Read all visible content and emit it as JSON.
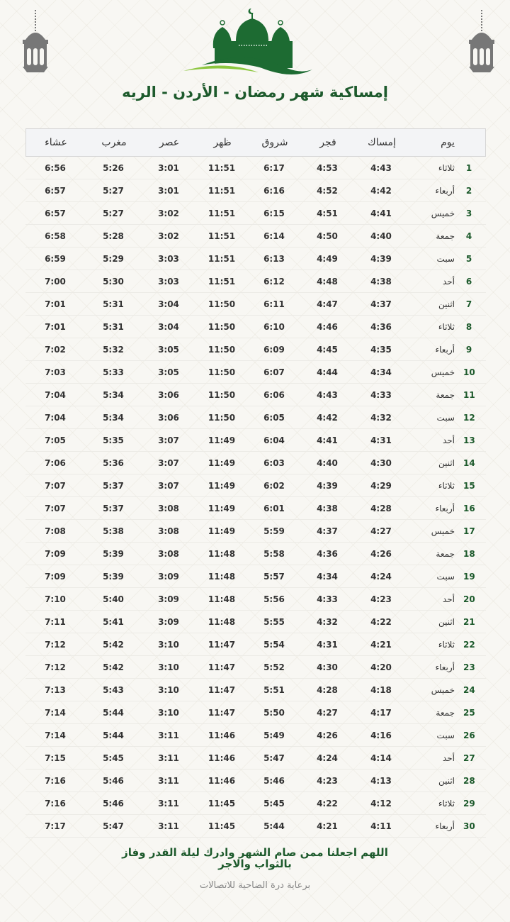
{
  "header": {
    "title": "إمساكية شهر رمضان - الأردن - الريه",
    "colors": {
      "green": "#1d6b32",
      "light_green": "#8cc63f",
      "lantern": "#777777"
    }
  },
  "table": {
    "columns": [
      "عشاء",
      "مغرب",
      "عصر",
      "ظهر",
      "شروق",
      "فجر",
      "إمساك",
      "يوم"
    ],
    "rows": [
      [
        "1",
        "ثلاثاء",
        "4:43",
        "4:53",
        "6:17",
        "11:51",
        "3:01",
        "5:26",
        "6:56"
      ],
      [
        "2",
        "أربعاء",
        "4:42",
        "4:52",
        "6:16",
        "11:51",
        "3:01",
        "5:27",
        "6:57"
      ],
      [
        "3",
        "خميس",
        "4:41",
        "4:51",
        "6:15",
        "11:51",
        "3:02",
        "5:27",
        "6:57"
      ],
      [
        "4",
        "جمعة",
        "4:40",
        "4:50",
        "6:14",
        "11:51",
        "3:02",
        "5:28",
        "6:58"
      ],
      [
        "5",
        "سبت",
        "4:39",
        "4:49",
        "6:13",
        "11:51",
        "3:03",
        "5:29",
        "6:59"
      ],
      [
        "6",
        "أحد",
        "4:38",
        "4:48",
        "6:12",
        "11:51",
        "3:03",
        "5:30",
        "7:00"
      ],
      [
        "7",
        "اثنين",
        "4:37",
        "4:47",
        "6:11",
        "11:50",
        "3:04",
        "5:31",
        "7:01"
      ],
      [
        "8",
        "ثلاثاء",
        "4:36",
        "4:46",
        "6:10",
        "11:50",
        "3:04",
        "5:31",
        "7:01"
      ],
      [
        "9",
        "أربعاء",
        "4:35",
        "4:45",
        "6:09",
        "11:50",
        "3:05",
        "5:32",
        "7:02"
      ],
      [
        "10",
        "خميس",
        "4:34",
        "4:44",
        "6:07",
        "11:50",
        "3:05",
        "5:33",
        "7:03"
      ],
      [
        "11",
        "جمعة",
        "4:33",
        "4:43",
        "6:06",
        "11:50",
        "3:06",
        "5:34",
        "7:04"
      ],
      [
        "12",
        "سبت",
        "4:32",
        "4:42",
        "6:05",
        "11:50",
        "3:06",
        "5:34",
        "7:04"
      ],
      [
        "13",
        "أحد",
        "4:31",
        "4:41",
        "6:04",
        "11:49",
        "3:07",
        "5:35",
        "7:05"
      ],
      [
        "14",
        "اثنين",
        "4:30",
        "4:40",
        "6:03",
        "11:49",
        "3:07",
        "5:36",
        "7:06"
      ],
      [
        "15",
        "ثلاثاء",
        "4:29",
        "4:39",
        "6:02",
        "11:49",
        "3:07",
        "5:37",
        "7:07"
      ],
      [
        "16",
        "أربعاء",
        "4:28",
        "4:38",
        "6:01",
        "11:49",
        "3:08",
        "5:37",
        "7:07"
      ],
      [
        "17",
        "خميس",
        "4:27",
        "4:37",
        "5:59",
        "11:49",
        "3:08",
        "5:38",
        "7:08"
      ],
      [
        "18",
        "جمعة",
        "4:26",
        "4:36",
        "5:58",
        "11:48",
        "3:08",
        "5:39",
        "7:09"
      ],
      [
        "19",
        "سبت",
        "4:24",
        "4:34",
        "5:57",
        "11:48",
        "3:09",
        "5:39",
        "7:09"
      ],
      [
        "20",
        "أحد",
        "4:23",
        "4:33",
        "5:56",
        "11:48",
        "3:09",
        "5:40",
        "7:10"
      ],
      [
        "21",
        "اثنين",
        "4:22",
        "4:32",
        "5:55",
        "11:48",
        "3:09",
        "5:41",
        "7:11"
      ],
      [
        "22",
        "ثلاثاء",
        "4:21",
        "4:31",
        "5:54",
        "11:47",
        "3:10",
        "5:42",
        "7:12"
      ],
      [
        "23",
        "أربعاء",
        "4:20",
        "4:30",
        "5:52",
        "11:47",
        "3:10",
        "5:42",
        "7:12"
      ],
      [
        "24",
        "خميس",
        "4:18",
        "4:28",
        "5:51",
        "11:47",
        "3:10",
        "5:43",
        "7:13"
      ],
      [
        "25",
        "جمعة",
        "4:17",
        "4:27",
        "5:50",
        "11:47",
        "3:10",
        "5:44",
        "7:14"
      ],
      [
        "26",
        "سبت",
        "4:16",
        "4:26",
        "5:49",
        "11:46",
        "3:11",
        "5:44",
        "7:14"
      ],
      [
        "27",
        "أحد",
        "4:14",
        "4:24",
        "5:47",
        "11:46",
        "3:11",
        "5:45",
        "7:15"
      ],
      [
        "28",
        "اثنين",
        "4:13",
        "4:23",
        "5:46",
        "11:46",
        "3:11",
        "5:46",
        "7:16"
      ],
      [
        "29",
        "ثلاثاء",
        "4:12",
        "4:22",
        "5:45",
        "11:45",
        "3:11",
        "5:46",
        "7:16"
      ],
      [
        "30",
        "أربعاء",
        "4:11",
        "4:21",
        "5:44",
        "11:45",
        "3:11",
        "5:47",
        "7:17"
      ]
    ]
  },
  "footer": {
    "dua": "اللهم اجعلنا ممن صام الشهر وادرك ليلة القدر وفاز بالثواب والاجر",
    "sponsor": "برعاية درة الضاحية للاتصالات"
  }
}
